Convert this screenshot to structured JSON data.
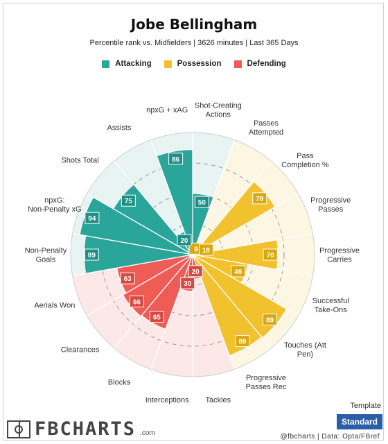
{
  "header": {
    "title": "Jobe Bellingham",
    "subtitle": "Percentile rank vs. Midfielders | 3626 minutes | Last 365 Days"
  },
  "legend": [
    {
      "label": "Attacking",
      "color": "#2aa59a"
    },
    {
      "label": "Possession",
      "color": "#f2c12e"
    },
    {
      "label": "Defending",
      "color": "#ef5b55"
    }
  ],
  "chart_data": {
    "type": "polar-bar",
    "scale": [
      0,
      100
    ],
    "grid": true,
    "categories": [
      {
        "label": "Shot-Creating Actions",
        "value": 50,
        "group": "Attacking"
      },
      {
        "label": "Passes Attempted",
        "value": 9,
        "group": "Possession"
      },
      {
        "label": "Pass Completion %",
        "value": 78,
        "group": "Possession"
      },
      {
        "label": "Progressive Passes",
        "value": 18,
        "group": "Possession"
      },
      {
        "label": "Progressive Carries",
        "value": 70,
        "group": "Possession"
      },
      {
        "label": "Successful Take-Ons",
        "value": 46,
        "group": "Possession"
      },
      {
        "label": "Touches (Att Pen)",
        "value": 89,
        "group": "Possession"
      },
      {
        "label": "Progressive Passes Rec",
        "value": 88,
        "group": "Possession"
      },
      {
        "label": "Tackles",
        "value": 20,
        "group": "Defending"
      },
      {
        "label": "Interceptions",
        "value": 30,
        "group": "Defending"
      },
      {
        "label": "Blocks",
        "value": 65,
        "group": "Defending"
      },
      {
        "label": "Clearances",
        "value": 66,
        "group": "Defending"
      },
      {
        "label": "Aerials Won",
        "value": 63,
        "group": "Defending"
      },
      {
        "label": "Non-Penalty Goals",
        "value": 89,
        "group": "Attacking"
      },
      {
        "label": "npxG: Non-Penalty xG",
        "value": 94,
        "group": "Attacking"
      },
      {
        "label": "Shots Total",
        "value": 75,
        "group": "Attacking"
      },
      {
        "label": "Assists",
        "value": 20,
        "group": "Attacking"
      },
      {
        "label": "npxG + xAG",
        "value": 86,
        "group": "Attacking"
      }
    ]
  },
  "footer": {
    "brand": "FBCHARTS",
    "brand_suffix": ".com",
    "credit": "@fbcharts  |  Data: Opta/FBref",
    "template_label": "Template",
    "template_value": "Standard"
  }
}
